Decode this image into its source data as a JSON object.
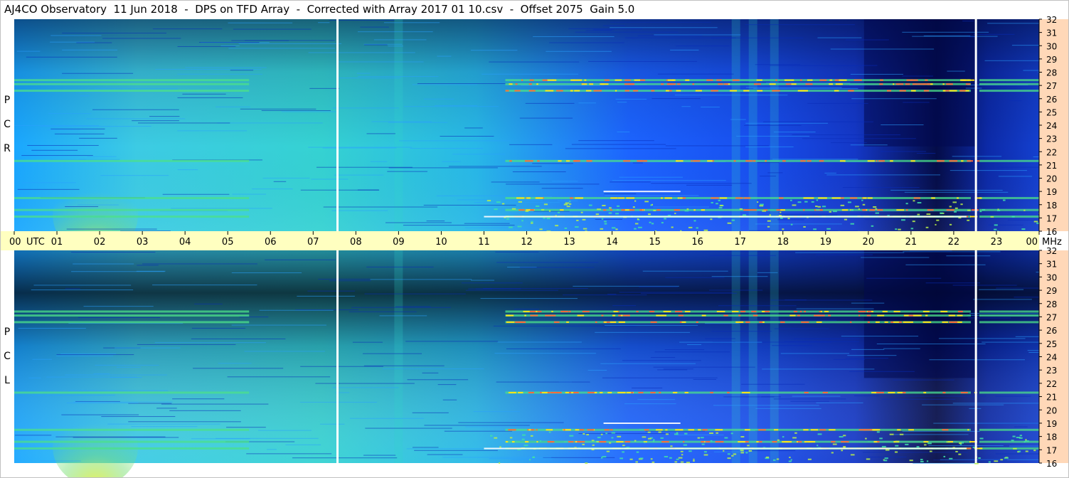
{
  "title": "AJ4CO Observatory  11 Jun 2018  -  DPS on TFD Array  -  Corrected with Array 2017 01 10.csv  -  Offset 2075  Gain 5.0",
  "panels": [
    {
      "name": "rcp",
      "letters": [
        "P",
        "C",
        "R"
      ]
    },
    {
      "name": "lcp",
      "letters": [
        "P",
        "C",
        "L"
      ]
    }
  ],
  "colors": {
    "time_axis_bg": "#ffffc0",
    "freq_axis_bg": "#ffd8b8",
    "gap_line": "#ffffff",
    "low_power": "#020a50",
    "background_power": "#1a5cff",
    "elevated_power": "#33d6c8",
    "hot_power": "#ffe21a"
  },
  "chart_data": {
    "type": "heatmap",
    "x_axis": {
      "unit_label": "UTC",
      "range": [
        0,
        24
      ],
      "tick_labels": [
        "00",
        "01",
        "02",
        "03",
        "04",
        "05",
        "06",
        "07",
        "08",
        "09",
        "10",
        "11",
        "12",
        "13",
        "14",
        "15",
        "16",
        "17",
        "18",
        "19",
        "20",
        "21",
        "22",
        "23",
        "00"
      ]
    },
    "y_axis": {
      "unit_label": "MHz",
      "range": [
        16,
        32
      ],
      "tick_labels": [
        "16",
        "17",
        "18",
        "19",
        "20",
        "21",
        "22",
        "23",
        "24",
        "25",
        "26",
        "27",
        "28",
        "29",
        "30",
        "31",
        "32"
      ]
    },
    "data_gaps_utc": [
      7.57,
      22.52
    ],
    "interference_bands_mhz": [
      17.1,
      17.6,
      18.5,
      21.3,
      26.6,
      27.1,
      27.4
    ],
    "faint_vertical_columns_utc": [
      9.0,
      16.9,
      17.3,
      17.8
    ]
  }
}
